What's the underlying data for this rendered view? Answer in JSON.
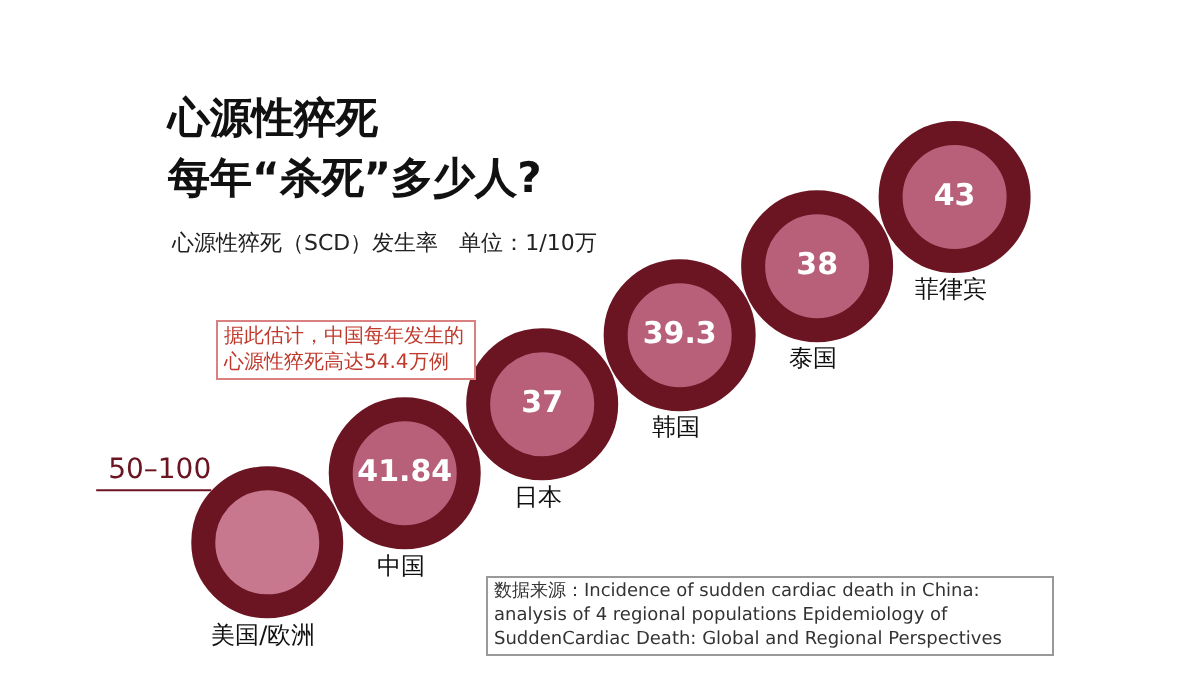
{
  "chart_data": {
    "type": "other",
    "title": "心源性猝死",
    "subtitle": "每年“杀死”多少人?",
    "categories": [
      "美国/欧洲",
      "中国",
      "日本",
      "韩国",
      "泰国",
      "菲律宾"
    ],
    "values": [
      null,
      41.84,
      37,
      39.3,
      38,
      43
    ],
    "data_labels": true,
    "colors": [
      "#c8788e",
      "#b8607a",
      "#b8607a",
      "#b8607a",
      "#b8607a",
      "#b8607a"
    ],
    "color": "#6b1522",
    "annotations": [
      "心源性猝死（SCD）发生率   单位：1/10万",
      "据此估计，中国每年发生的心源性猝死高达54.4万例",
      "数据来源：Incidence of sudden cardiac death in China: analysis of 4 regional populations Epidemiology of SuddenCardiac Death: Global and Regional Perspectives",
      {
        "text": "50–100",
        "x": "美国/欧洲"
      }
    ]
  }
}
